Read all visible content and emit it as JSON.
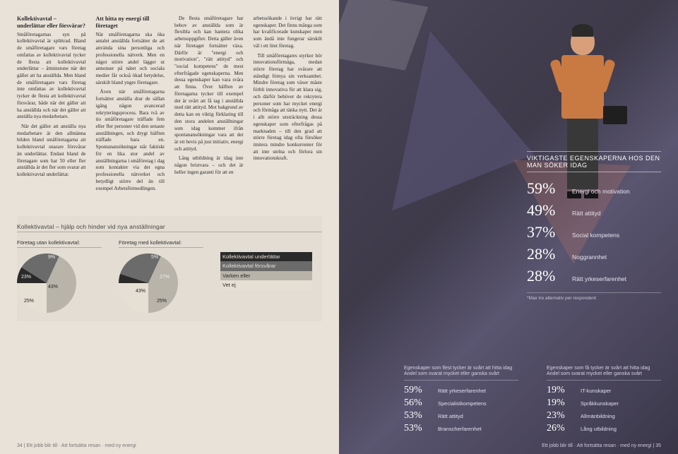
{
  "left": {
    "col1": {
      "heading": "Kollektivavtal – underlättar eller försvårar?",
      "p1": "Småföretagarnas syn på kollektivavtal är splittrad. Bland de småföretagare vars företag omfattas av kollektivavtal tycker de flesta att kollektivavtal underlättar – åtminstone när det gäller att ha anställda. Men bland de småföretagare vars företag inte omfattas av kollektivavtal tycker de flesta att kollektivavtal försvårar, både när det gäller att ha anställda och när det gäller att anställa nya medarbetare.",
      "p2": "När det gäller att anställa nya medarbetare är den allmänna bilden bland småföretagarna att kollektivavtal snarare försvårar än underlättar. Endast bland de företagare som har 50 eller fler anställda är det fler som svarar att kollektivavtal underlättar."
    },
    "col2": {
      "heading": "Att hitta ny energi till företaget",
      "p1": "När småföretagarna ska öka antalet anställda fortsätter de att använda sina personliga och professionella nätverk. Men en något större andel lägger ut annonser på nätet och sociala medier får också ökad betydelse, särskilt bland yngre företagare.",
      "p2": "Även när småföretagarna fortsätter anställa drar de sällan igång någon avancerad rekryteringsprocess. Bara två av tio småföretagare träffade fem eller fler personer vid den senaste anställningen, och drygt hälften träffade bara en. Spontanansökningar står faktiskt för en lika stor andel av anställningarna i småföretag i dag som kontakter via det egna professionella nätverket och betydligt större del än till exempel Arbetsförmedlingen."
    },
    "col3": {
      "p1": "De flesta småföretagare har behov av anställda som är flexibla och kan hantera olika arbetsuppgifter. Detta gäller även när företaget fortsätter växa. Därför är \"energi och motivation\", \"rätt attityd\" och \"social kompetens\" de mest efterfrågade egenskaperna. Men dessa egenskaper kan vara svåra att finna. Över hälften av företagarna tycker till exempel det är svårt att få tag i anställda med rätt attityd. Mot bakgrund av detta kan en viktig förklaring till den stora andelen anställningar som idag kommer ifrån spontanansökningar vara att det är ett bevis på just initiativ, energi och attityd.",
      "p2": "Lång utbildning är idag inte någon bristvara – och det är heller ingen garanti för att en"
    },
    "col4": {
      "p1": "arbetssökande i övrigt har rätt egenskaper. Det finns många som har kvalificerade kunskaper men som ändå inte fungerar särskilt väl i ett litet företag.",
      "p2": "Till småföretagares styrkor hör innovationsförmåga, medan större företag har svårare att ständigt förnya sin verksamhet. Mindre företag som växer måste förbli innovativa för att klara sig, och därför behöver de rekrytera personer som har mycket energi och förmåga att tänka nytt. Det är i allt större utsträckning dessa egenskaper som efterfrågas på marknaden – till den grad att större företag idag ofta försöker imitera mindre konkurrenter för att inte stelna och förlora sin innovationskraft."
    },
    "chart": {
      "title": "Kollektivavtal – hjälp och hinder vid nya anställningar",
      "pieA": {
        "header": "Företag utan kollektivavtal:",
        "slices": [
          {
            "label": "9%",
            "color": "#2a2a2a",
            "deg": 32
          },
          {
            "label": "23%",
            "color": "#6b6b6b",
            "deg": 83
          },
          {
            "label": "43%",
            "color": "#b8b4aa",
            "deg": 155
          },
          {
            "label": "25%",
            "color": "#e6e0d4",
            "deg": 90
          }
        ],
        "pos": [
          {
            "t": "2px",
            "l": "44px"
          },
          {
            "t": "30px",
            "l": "6px"
          },
          {
            "t": "44px",
            "l": "44px"
          },
          {
            "t": "64px",
            "l": "10px"
          }
        ]
      },
      "pieB": {
        "header": "Företag med kollektivavtal:",
        "slices": [
          {
            "label": "5%",
            "color": "#2a2a2a",
            "deg": 18
          },
          {
            "label": "27%",
            "color": "#6b6b6b",
            "deg": 97
          },
          {
            "label": "43%",
            "color": "#b8b4aa",
            "deg": 155
          },
          {
            "label": "25%",
            "color": "#e6e0d4",
            "deg": 90
          }
        ],
        "pos": [
          {
            "t": "2px",
            "l": "46px"
          },
          {
            "t": "30px",
            "l": "58px"
          },
          {
            "t": "50px",
            "l": "24px"
          },
          {
            "t": "64px",
            "l": "54px"
          }
        ]
      },
      "legend": [
        "Kollektivavtal underlättar",
        "Kollektivavtal försvårar",
        "Varken eller",
        "Vet ej"
      ]
    },
    "pagenum": "34 | Ett jobb blir till · Att fortsätta resan · med ny energi"
  },
  "right": {
    "props": {
      "heading": "VIKTIGASTE EGENSKAPERNA HOS DEN MAN SÖKER IDAG",
      "rows": [
        {
          "pct": "59%",
          "label": "Energi och motivation"
        },
        {
          "pct": "49%",
          "label": "Rätt attityd"
        },
        {
          "pct": "37%",
          "label": "Social kompetens"
        },
        {
          "pct": "28%",
          "label": "Noggrannhet"
        },
        {
          "pct": "28%",
          "label": "Rätt yrkeserfarenhet"
        }
      ],
      "footnote": "*Max tre alternativ per respondent"
    },
    "hardTable": {
      "heading": "Egenskaper som flest tycker är svårt att hitta idag\nAndel som svarat mycket eller ganska svårt",
      "rows": [
        {
          "pct": "59%",
          "label": "Rätt yrkeserfarenhet"
        },
        {
          "pct": "56%",
          "label": "Specialistkompetens"
        },
        {
          "pct": "53%",
          "label": "Rätt attityd"
        },
        {
          "pct": "53%",
          "label": "Branscherfarenhet"
        }
      ]
    },
    "easyTable": {
      "heading": "Egenskaper som få tycker är svårt att hitta idag\nAndel som svarat mycket eller ganska svårt",
      "rows": [
        {
          "pct": "19%",
          "label": "IT-kunskaper"
        },
        {
          "pct": "19%",
          "label": "Språkkunskaper"
        },
        {
          "pct": "23%",
          "label": "Allmänbildning"
        },
        {
          "pct": "26%",
          "label": "Lång utbildning"
        }
      ]
    },
    "pagenum": "Ett jobb blir till · Att fortsätta resan · med ny energi | 35"
  }
}
